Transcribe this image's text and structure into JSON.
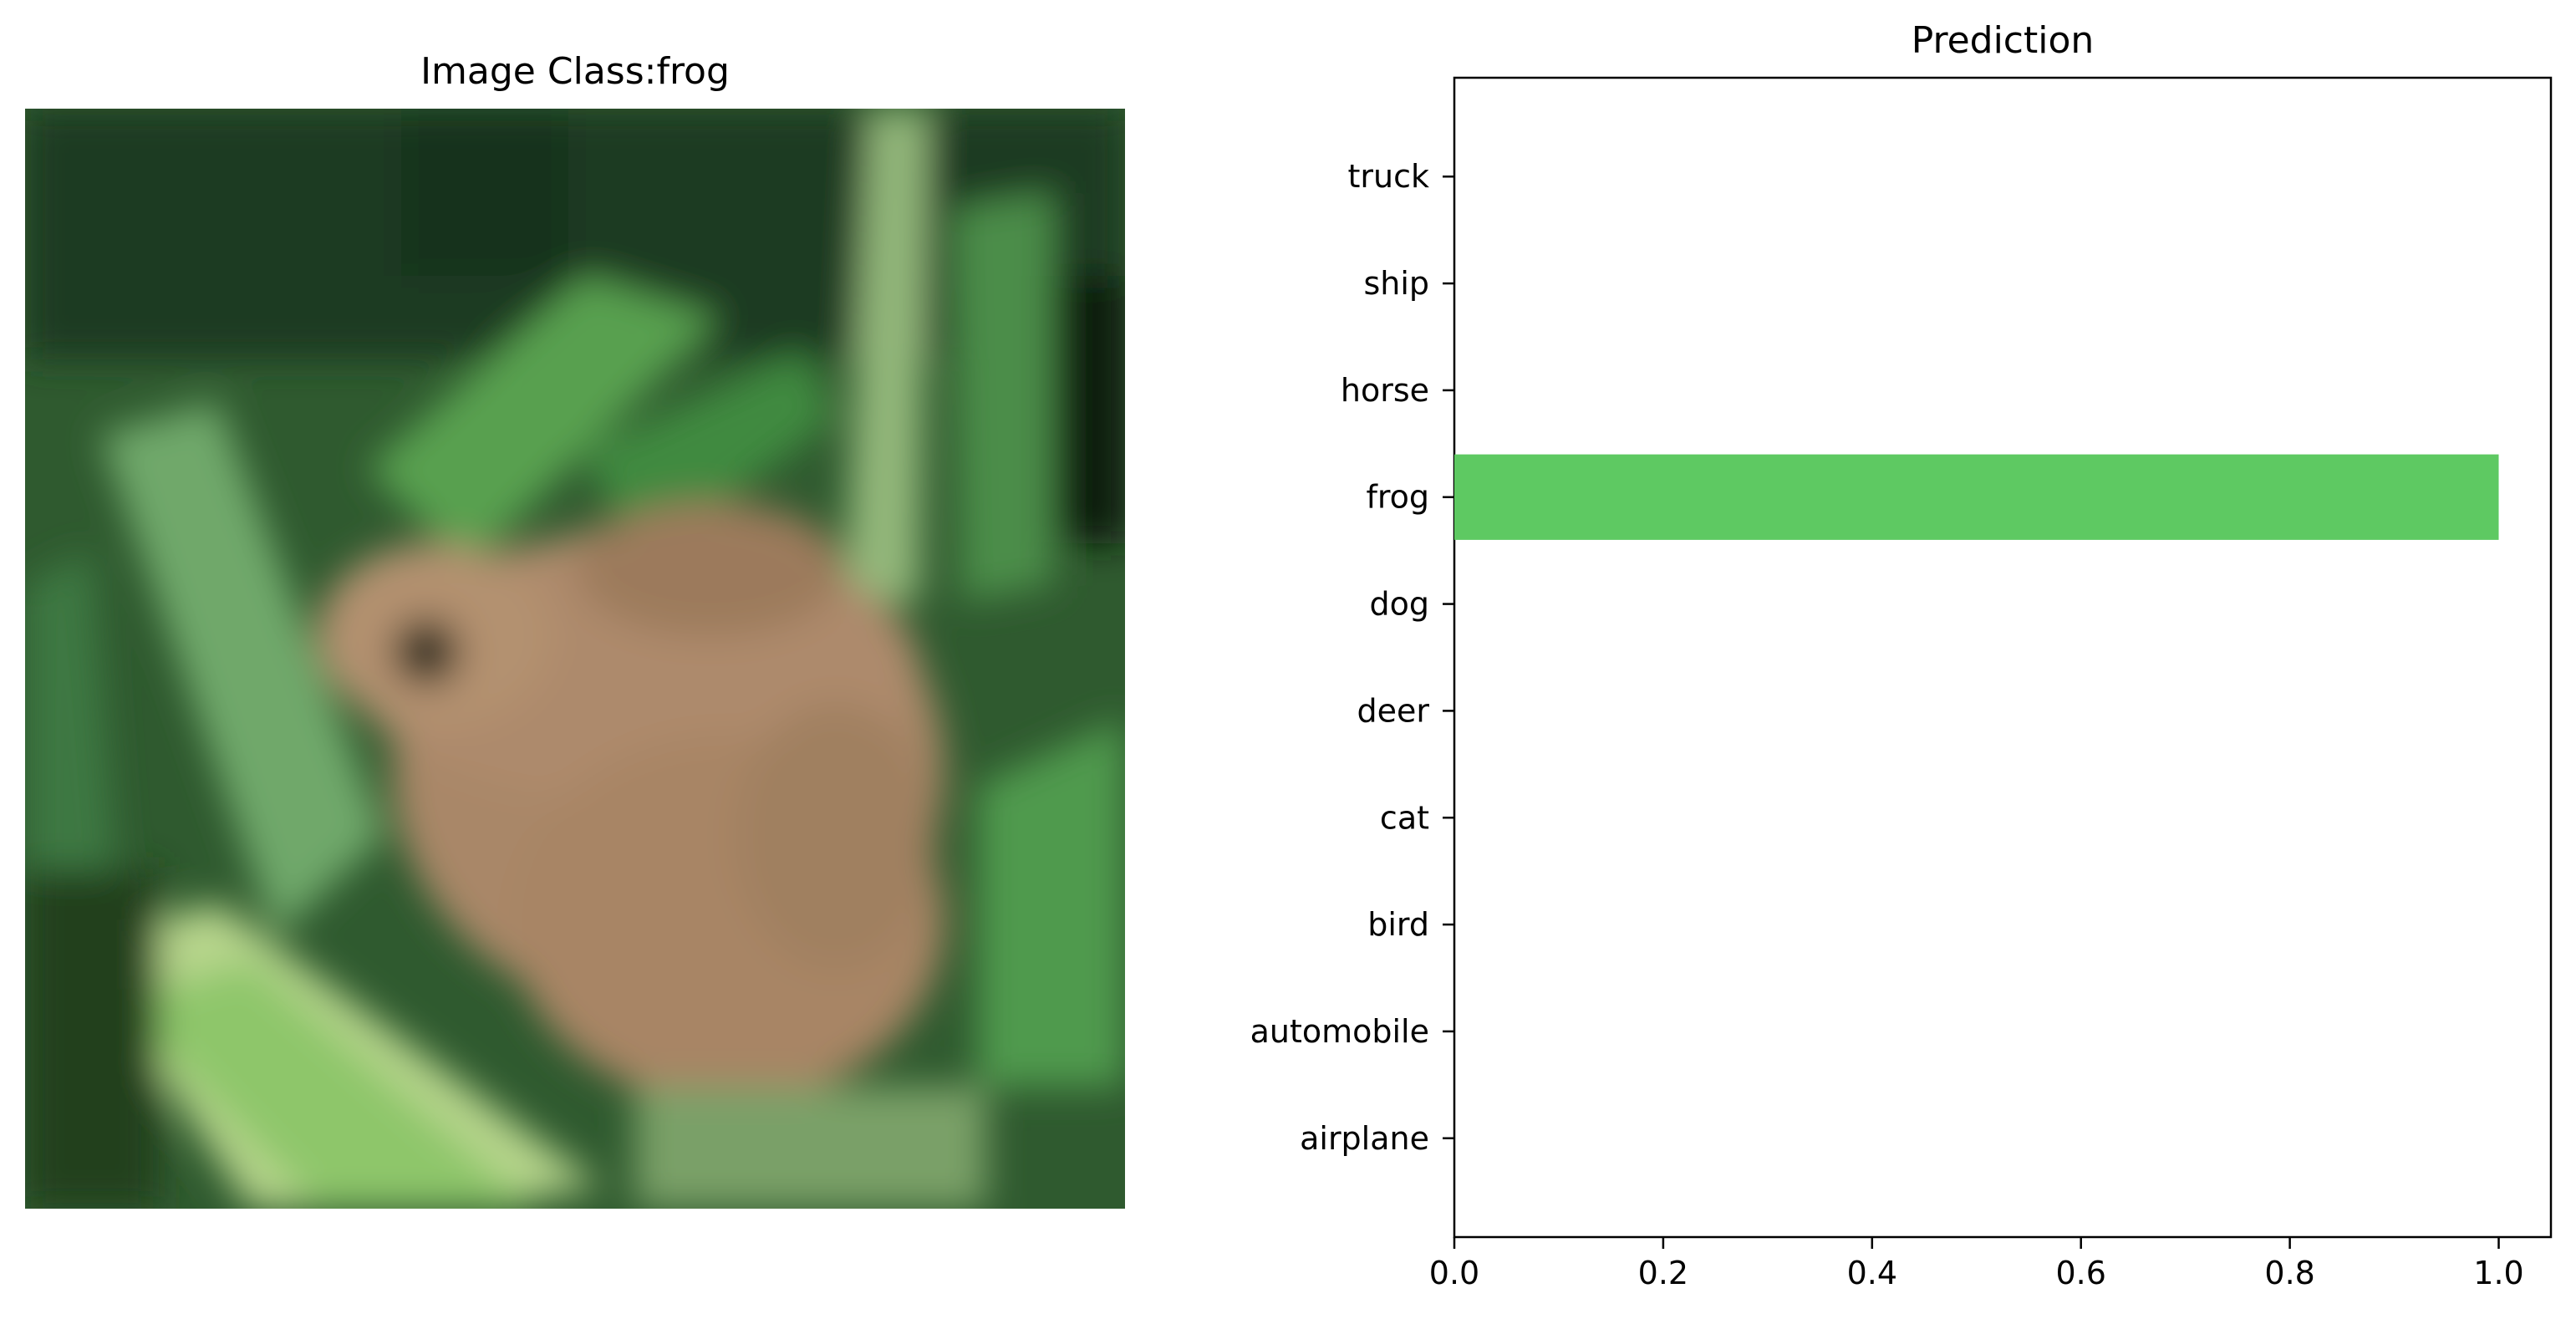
{
  "image_panel": {
    "title": "Image Class:frog",
    "description_icon": "frog-photo-icon"
  },
  "chart_data": {
    "type": "bar",
    "orientation": "horizontal",
    "title": "Prediction",
    "xlabel": "",
    "ylabel": "",
    "categories": [
      "airplane",
      "automobile",
      "bird",
      "cat",
      "deer",
      "dog",
      "frog",
      "horse",
      "ship",
      "truck"
    ],
    "values": [
      0.0,
      0.0,
      0.0,
      0.0,
      0.0,
      0.0,
      1.0,
      0.0,
      0.0,
      0.0
    ],
    "xlim": [
      0.0,
      1.05
    ],
    "xticks": [
      0.0,
      0.2,
      0.4,
      0.6,
      0.8,
      1.0
    ],
    "xtick_labels": [
      "0.0",
      "0.2",
      "0.4",
      "0.6",
      "0.8",
      "1.0"
    ],
    "bar_color": "#5ec962",
    "grid": false,
    "legend": "none"
  }
}
